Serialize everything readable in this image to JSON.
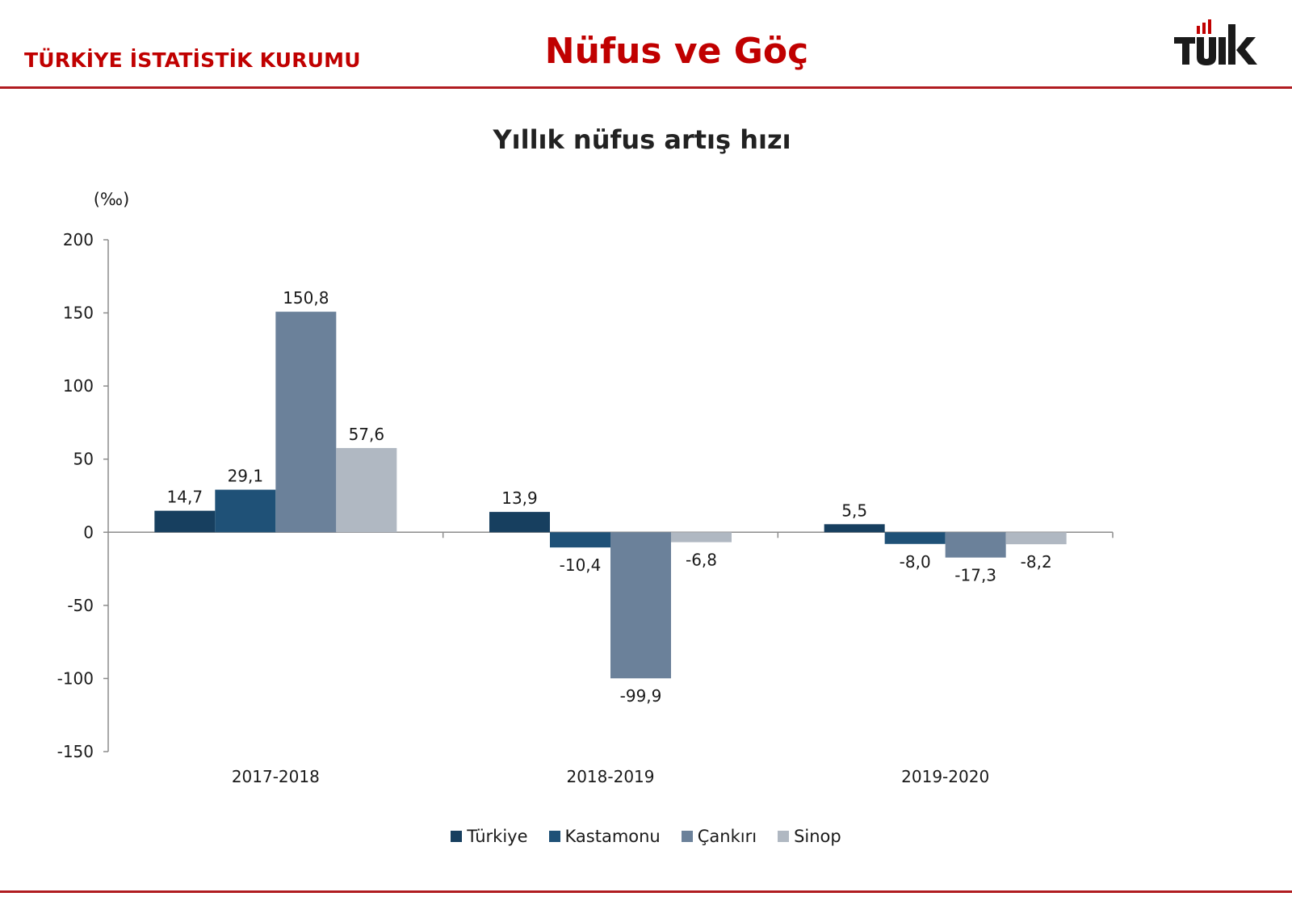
{
  "header": {
    "org_name": "TÜRKİYE İSTATİSTİK KURUMU",
    "title": "Nüfus ve Göç",
    "logo_text": "TÜİK",
    "accent_color": "#c00000",
    "rule_color": "#b01c20"
  },
  "chart_data": {
    "type": "bar",
    "title": "Yıllık nüfus artış hızı",
    "unit_label": "(‰)",
    "xlabel": "",
    "ylabel": "",
    "categories": [
      "2017-2018",
      "2018-2019",
      "2019-2020"
    ],
    "series": [
      {
        "name": "Türkiye",
        "color": "#173f5f",
        "values": [
          14.7,
          13.9,
          5.5
        ],
        "labels": [
          "14,7",
          "13,9",
          "5,5"
        ]
      },
      {
        "name": "Kastamonu",
        "color": "#1f5177",
        "values": [
          29.1,
          -10.4,
          -8.0
        ],
        "labels": [
          "29,1",
          "-10,4",
          "-8,0"
        ]
      },
      {
        "name": "Çankırı",
        "color": "#6b819a",
        "values": [
          150.8,
          -99.9,
          -17.3
        ],
        "labels": [
          "150,8",
          "-99,9",
          "-17,3"
        ]
      },
      {
        "name": "Sinop",
        "color": "#b0b8c2",
        "values": [
          57.6,
          -6.8,
          -8.2
        ],
        "labels": [
          "57,6",
          "-6,8",
          "-8,2"
        ]
      }
    ],
    "ylim": [
      -150,
      200
    ],
    "yticks": [
      200,
      150,
      100,
      50,
      0,
      -50,
      -100,
      -150
    ],
    "grid": false,
    "legend_position": "bottom"
  }
}
